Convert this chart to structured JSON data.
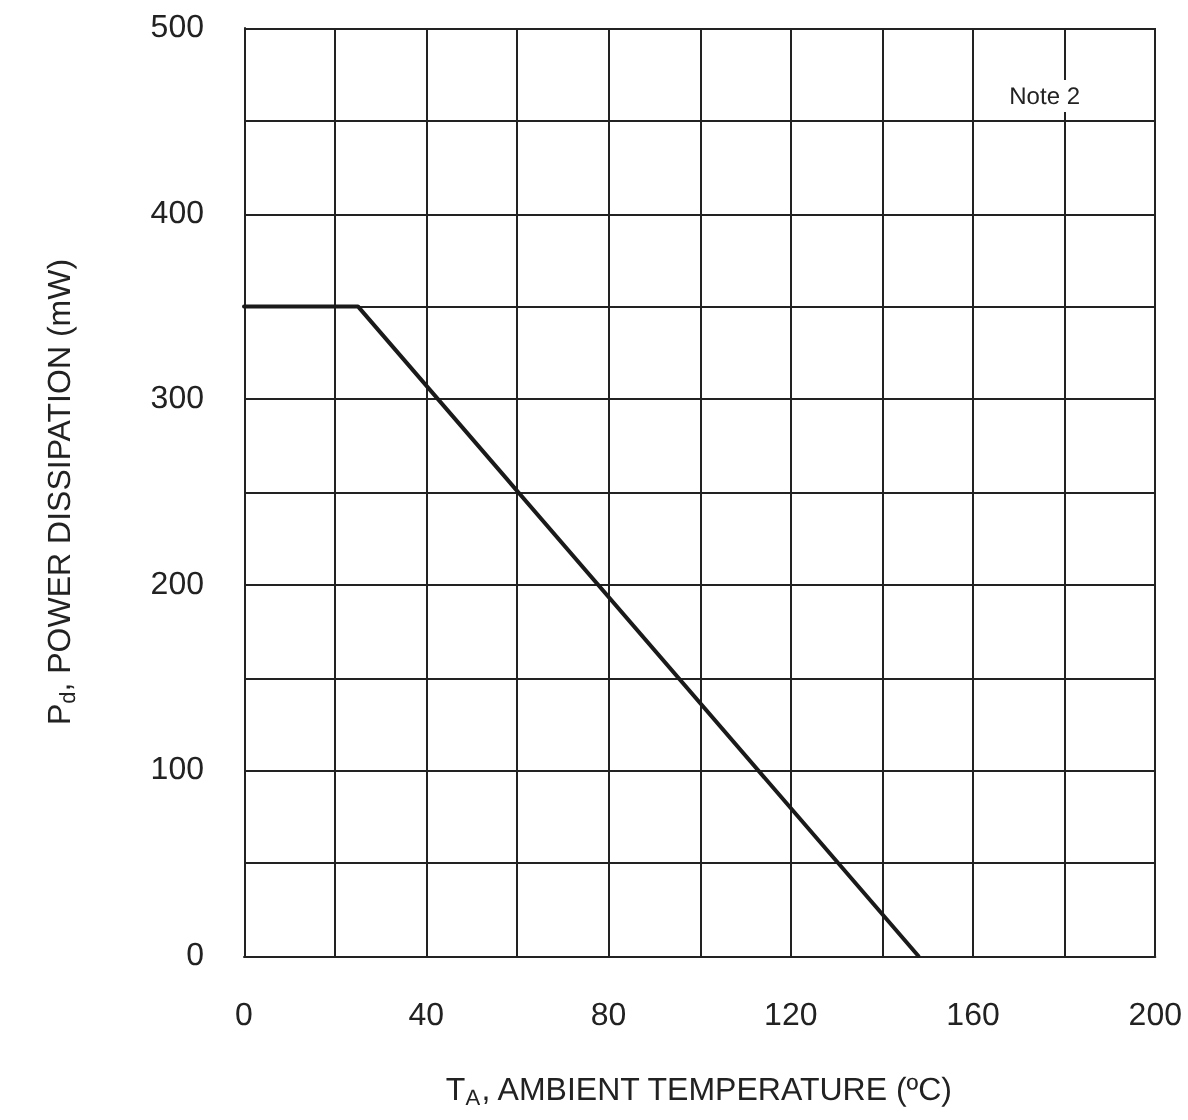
{
  "chart_data": {
    "type": "line",
    "xlabel": "T$_{A}$, AMBIENT TEMPERATURE (ºC)",
    "ylabel": "P$_{d}$, POWER DISSIPATION (mW)",
    "annotations": [
      "Note 2"
    ],
    "x": [
      0,
      25,
      148
    ],
    "series": [
      {
        "color": "#1a1a1a",
        "values": [
          350,
          350,
          0
        ]
      }
    ],
    "xlim": [
      0,
      200
    ],
    "xticks": [
      0,
      {
        "value": 20,
        "label": null
      },
      40,
      {
        "value": 60,
        "label": null
      },
      80,
      {
        "value": 100,
        "label": null
      },
      120,
      {
        "value": 140,
        "label": null
      },
      160,
      {
        "value": 180,
        "label": null
      },
      200
    ],
    "ylim": [
      0,
      500
    ],
    "yticks": [
      0,
      {
        "value": 50,
        "label": null
      },
      100,
      {
        "value": 150,
        "label": null
      },
      200,
      {
        "value": 250,
        "label": null
      },
      300,
      {
        "value": 350,
        "label": null
      },
      400,
      {
        "value": 450,
        "label": null
      },
      500
    ],
    "grid": true,
    "marker": "none",
    "line_style": "solid"
  }
}
